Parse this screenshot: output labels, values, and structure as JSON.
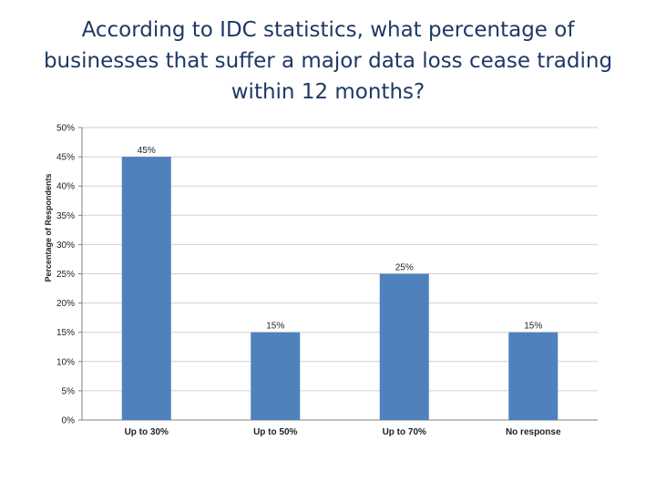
{
  "slide": {
    "title": "According to IDC statistics, what percentage of businesses that suffer a major data loss cease trading within 12 months?"
  },
  "colors": {
    "title": "#1f3864",
    "bar": "#4f81bd",
    "gridline": "#d0d0d0",
    "axis": "#808080"
  },
  "chart_data": {
    "type": "bar",
    "title": "",
    "xlabel": "",
    "ylabel": "Percentage of Respondents",
    "categories": [
      "Up to 30%",
      "Up to 50%",
      "Up to 70%",
      "No response"
    ],
    "values": [
      45,
      15,
      25,
      15
    ],
    "data_labels": [
      "45%",
      "15%",
      "25%",
      "15%"
    ],
    "ylim": [
      0,
      50
    ],
    "yticks": [
      0,
      5,
      10,
      15,
      20,
      25,
      30,
      35,
      40,
      45,
      50
    ],
    "ytick_labels": [
      "0%",
      "5%",
      "10%",
      "15%",
      "20%",
      "25%",
      "30%",
      "35%",
      "40%",
      "45%",
      "50%"
    ],
    "grid": true,
    "legend": "none"
  }
}
